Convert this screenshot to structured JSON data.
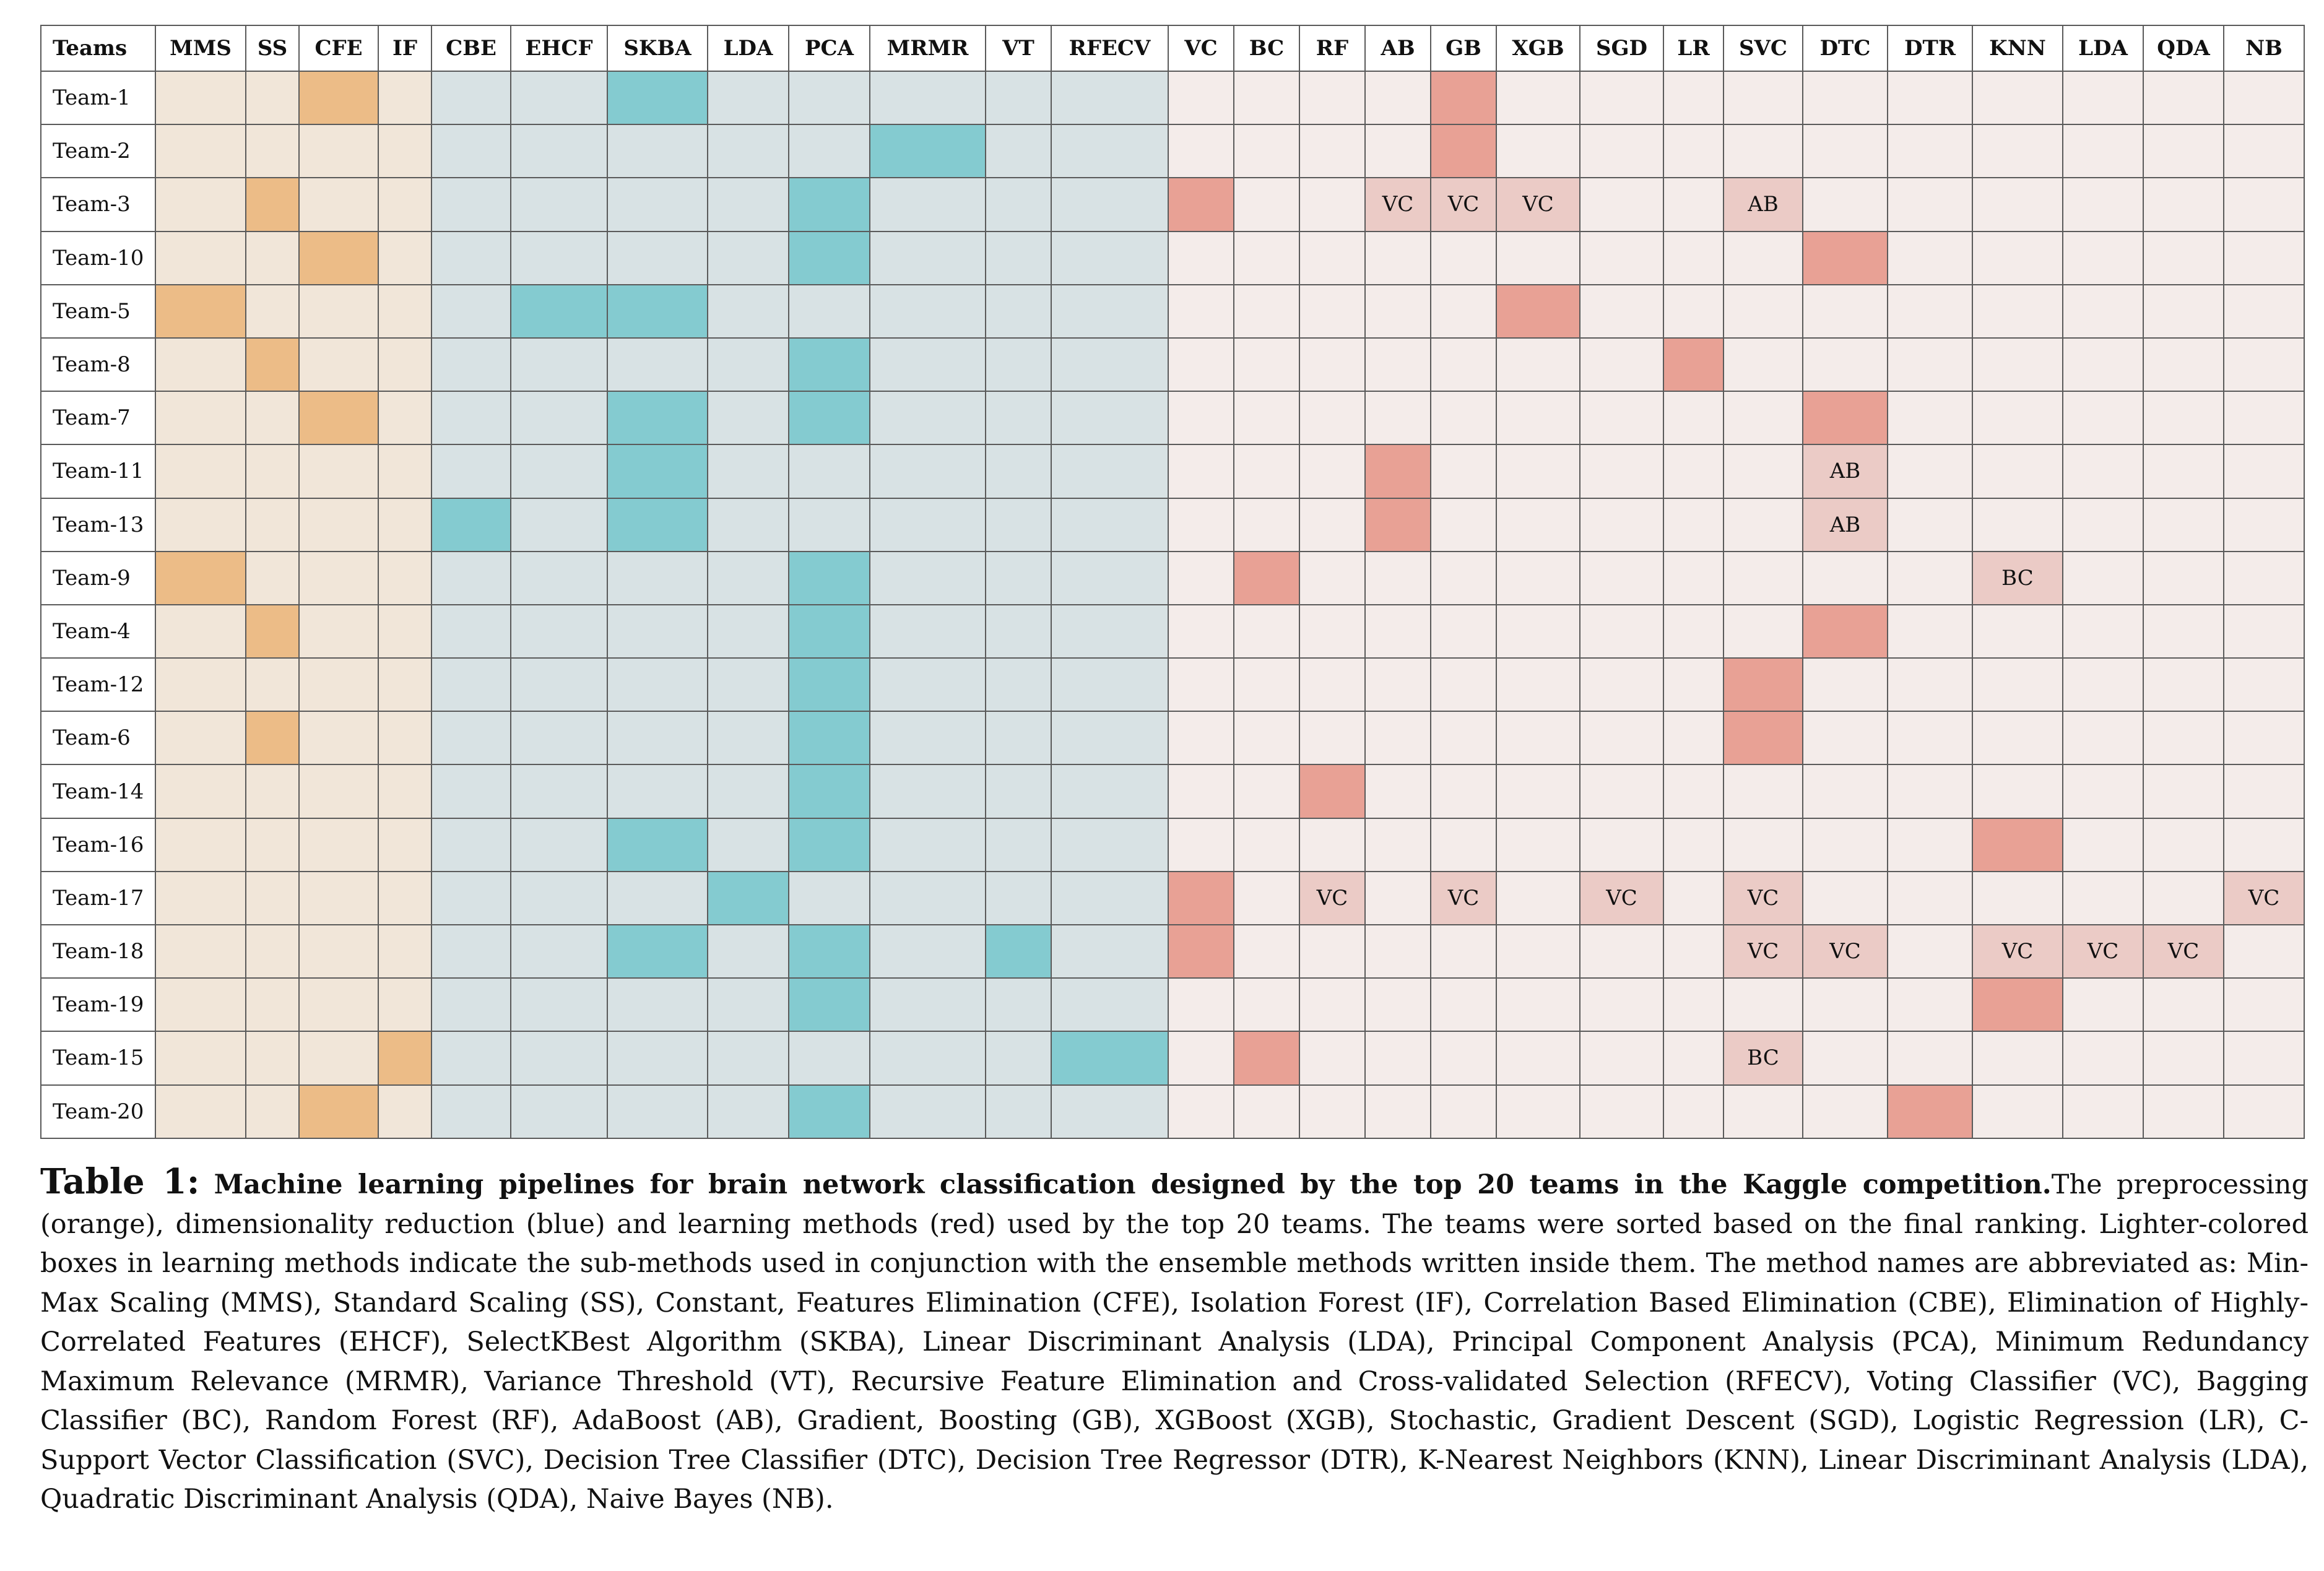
{
  "table": {
    "teams_header": "Teams",
    "columns": [
      {
        "abbr": "MMS",
        "group": "pre"
      },
      {
        "abbr": "SS",
        "group": "pre"
      },
      {
        "abbr": "CFE",
        "group": "pre"
      },
      {
        "abbr": "IF",
        "group": "pre"
      },
      {
        "abbr": "CBE",
        "group": "dim"
      },
      {
        "abbr": "EHCF",
        "group": "dim"
      },
      {
        "abbr": "SKBA",
        "group": "dim"
      },
      {
        "abbr": "LDA",
        "group": "dim"
      },
      {
        "abbr": "PCA",
        "group": "dim"
      },
      {
        "abbr": "MRMR",
        "group": "dim"
      },
      {
        "abbr": "VT",
        "group": "dim"
      },
      {
        "abbr": "RFECV",
        "group": "dim"
      },
      {
        "abbr": "VC",
        "group": "learn"
      },
      {
        "abbr": "BC",
        "group": "learn"
      },
      {
        "abbr": "RF",
        "group": "learn"
      },
      {
        "abbr": "AB",
        "group": "learn"
      },
      {
        "abbr": "GB",
        "group": "learn"
      },
      {
        "abbr": "XGB",
        "group": "learn"
      },
      {
        "abbr": "SGD",
        "group": "learn"
      },
      {
        "abbr": "LR",
        "group": "learn"
      },
      {
        "abbr": "SVC",
        "group": "learn"
      },
      {
        "abbr": "DTC",
        "group": "learn"
      },
      {
        "abbr": "DTR",
        "group": "learn"
      },
      {
        "abbr": "KNN",
        "group": "learn"
      },
      {
        "abbr": "LDA",
        "group": "learn"
      },
      {
        "abbr": "QDA",
        "group": "learn"
      },
      {
        "abbr": "NB",
        "group": "learn"
      }
    ],
    "colors": {
      "preprocessing_selected": "#ecbc87",
      "preprocessing_background": "#f1e6d9",
      "dim_reduction_selected": "#84cbd0",
      "dim_reduction_background": "#d8e2e4",
      "learning_selected": "#e8a195",
      "learning_submethod": "#ebcbc6",
      "learning_background": "#f4ecea"
    },
    "rows": [
      {
        "team": "Team-1",
        "on": [
          2,
          6,
          16
        ],
        "sub": []
      },
      {
        "team": "Team-2",
        "on": [
          9,
          16
        ],
        "sub": []
      },
      {
        "team": "Team-3",
        "on": [
          1,
          8,
          12
        ],
        "sub": [
          {
            "col": 15,
            "label": "VC"
          },
          {
            "col": 16,
            "label": "VC"
          },
          {
            "col": 17,
            "label": "VC"
          },
          {
            "col": 20,
            "label": "AB"
          }
        ]
      },
      {
        "team": "Team-10",
        "on": [
          2,
          8,
          21
        ],
        "sub": []
      },
      {
        "team": "Team-5",
        "on": [
          0,
          5,
          6,
          17
        ],
        "sub": []
      },
      {
        "team": "Team-8",
        "on": [
          1,
          8,
          19
        ],
        "sub": []
      },
      {
        "team": "Team-7",
        "on": [
          2,
          6,
          8,
          21
        ],
        "sub": []
      },
      {
        "team": "Team-11",
        "on": [
          6,
          15
        ],
        "sub": [
          {
            "col": 21,
            "label": "AB"
          }
        ]
      },
      {
        "team": "Team-13",
        "on": [
          4,
          6,
          15
        ],
        "sub": [
          {
            "col": 21,
            "label": "AB"
          }
        ]
      },
      {
        "team": "Team-9",
        "on": [
          0,
          8,
          13
        ],
        "sub": [
          {
            "col": 23,
            "label": "BC"
          }
        ]
      },
      {
        "team": "Team-4",
        "on": [
          1,
          8,
          21
        ],
        "sub": []
      },
      {
        "team": "Team-12",
        "on": [
          8,
          20
        ],
        "sub": []
      },
      {
        "team": "Team-6",
        "on": [
          1,
          8,
          20
        ],
        "sub": []
      },
      {
        "team": "Team-14",
        "on": [
          8,
          14
        ],
        "sub": []
      },
      {
        "team": "Team-16",
        "on": [
          6,
          8,
          23
        ],
        "sub": []
      },
      {
        "team": "Team-17",
        "on": [
          7,
          12
        ],
        "sub": [
          {
            "col": 14,
            "label": "VC"
          },
          {
            "col": 16,
            "label": "VC"
          },
          {
            "col": 18,
            "label": "VC"
          },
          {
            "col": 20,
            "label": "VC"
          },
          {
            "col": 26,
            "label": "VC"
          }
        ]
      },
      {
        "team": "Team-18",
        "on": [
          6,
          8,
          10,
          12
        ],
        "sub": [
          {
            "col": 20,
            "label": "VC"
          },
          {
            "col": 21,
            "label": "VC"
          },
          {
            "col": 23,
            "label": "VC"
          },
          {
            "col": 24,
            "label": "VC"
          },
          {
            "col": 25,
            "label": "VC"
          }
        ]
      },
      {
        "team": "Team-19",
        "on": [
          8,
          23
        ],
        "sub": []
      },
      {
        "team": "Team-15",
        "on": [
          3,
          11,
          13
        ],
        "sub": [
          {
            "col": 20,
            "label": "BC"
          }
        ]
      },
      {
        "team": "Team-20",
        "on": [
          2,
          8,
          22
        ],
        "sub": []
      }
    ]
  },
  "caption": {
    "label": "Table 1:",
    "title": "Machine learning pipelines for brain network classification designed by the top 20 teams in the Kaggle competition.",
    "body": "The preprocessing (orange), dimensionality reduction (blue) and learning methods (red) used by the top 20 teams. The teams were sorted based on the final ranking. Lighter-colored boxes in learning methods indicate the sub-methods used in conjunction with the ensemble methods written inside them. The method names are abbreviated as: Min-Max Scaling (MMS), Standard Scaling (SS), Constant, Features Elimination (CFE), Isolation Forest (IF), Correlation Based Elimination (CBE), Elimination of Highly-Correlated Features (EHCF), SelectKBest Algorithm (SKBA), Linear Discriminant Analysis (LDA), Principal Component Analysis (PCA), Minimum Redundancy Maximum Relevance (MRMR), Variance Threshold (VT), Recursive Feature Elimination and Cross-validated Selection (RFECV), Voting Classifier (VC), Bagging Classifier (BC), Random Forest (RF), AdaBoost (AB), Gradient, Boosting (GB), XGBoost (XGB), Stochastic, Gradient Descent (SGD), Logistic Regression (LR), C-Support Vector Classification (SVC), Decision Tree Classifier (DTC), Decision Tree Regressor (DTR), K-Nearest Neighbors (KNN), Linear Discriminant Analysis (LDA), Quadratic Discriminant Analysis (QDA), Naive Bayes (NB)."
  }
}
